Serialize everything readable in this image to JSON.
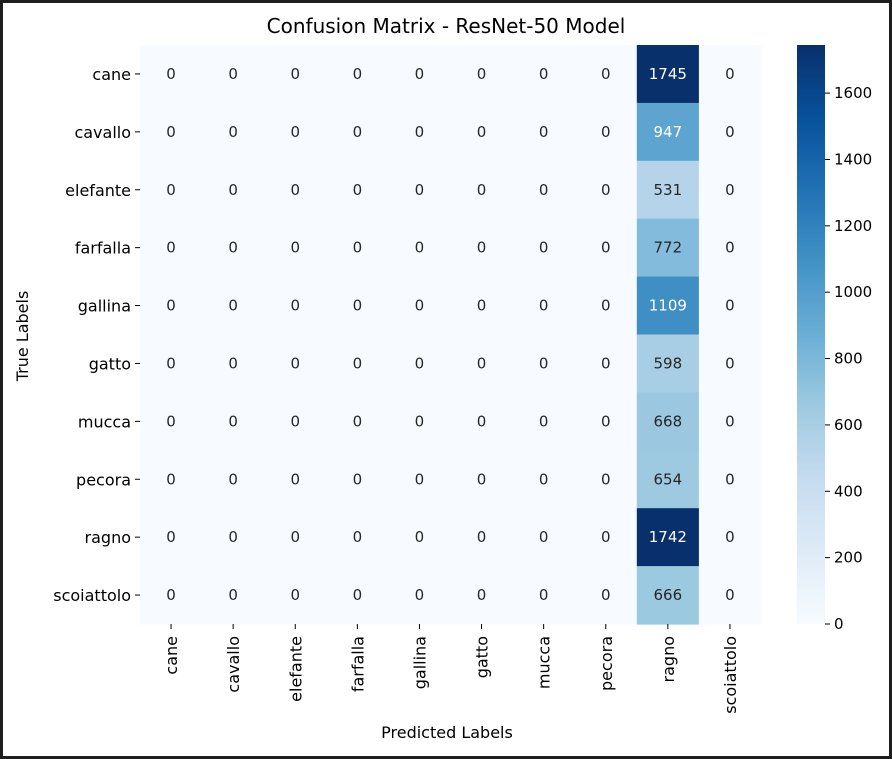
{
  "chart_data": {
    "type": "heatmap",
    "title": "Confusion Matrix - ResNet-50 Model",
    "xlabel": "Predicted Labels",
    "ylabel": "True Labels",
    "x_categories": [
      "cane",
      "cavallo",
      "elefante",
      "farfalla",
      "gallina",
      "gatto",
      "mucca",
      "pecora",
      "ragno",
      "scoiattolo"
    ],
    "y_categories": [
      "cane",
      "cavallo",
      "elefante",
      "farfalla",
      "gallina",
      "gatto",
      "mucca",
      "pecora",
      "ragno",
      "scoiattolo"
    ],
    "values": [
      [
        0,
        0,
        0,
        0,
        0,
        0,
        0,
        0,
        1745,
        0
      ],
      [
        0,
        0,
        0,
        0,
        0,
        0,
        0,
        0,
        947,
        0
      ],
      [
        0,
        0,
        0,
        0,
        0,
        0,
        0,
        0,
        531,
        0
      ],
      [
        0,
        0,
        0,
        0,
        0,
        0,
        0,
        0,
        772,
        0
      ],
      [
        0,
        0,
        0,
        0,
        0,
        0,
        0,
        0,
        1109,
        0
      ],
      [
        0,
        0,
        0,
        0,
        0,
        0,
        0,
        0,
        598,
        0
      ],
      [
        0,
        0,
        0,
        0,
        0,
        0,
        0,
        0,
        668,
        0
      ],
      [
        0,
        0,
        0,
        0,
        0,
        0,
        0,
        0,
        654,
        0
      ],
      [
        0,
        0,
        0,
        0,
        0,
        0,
        0,
        0,
        1742,
        0
      ],
      [
        0,
        0,
        0,
        0,
        0,
        0,
        0,
        0,
        666,
        0
      ]
    ],
    "colormap": "Blues",
    "vmin": 0,
    "vmax": 1745,
    "colorbar_ticks": [
      0,
      200,
      400,
      600,
      800,
      1000,
      1200,
      1400,
      1600
    ],
    "colors": {
      "low": "#f7fbff",
      "high": "#08306b"
    }
  }
}
